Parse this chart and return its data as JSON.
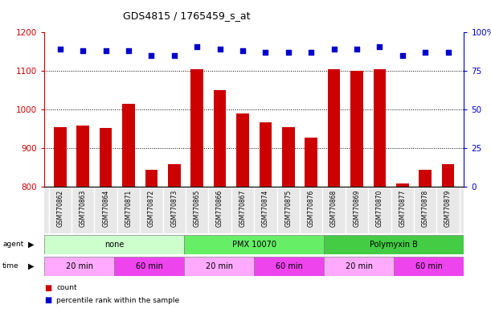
{
  "title": "GDS4815 / 1765459_s_at",
  "samples": [
    "GSM770862",
    "GSM770863",
    "GSM770864",
    "GSM770871",
    "GSM770872",
    "GSM770873",
    "GSM770865",
    "GSM770866",
    "GSM770867",
    "GSM770874",
    "GSM770875",
    "GSM770876",
    "GSM770868",
    "GSM770869",
    "GSM770870",
    "GSM770877",
    "GSM770878",
    "GSM770879"
  ],
  "counts": [
    955,
    960,
    952,
    1015,
    845,
    860,
    1105,
    1050,
    990,
    968,
    955,
    928,
    1105,
    1100,
    1105,
    808,
    845,
    858
  ],
  "percentiles": [
    89,
    88,
    88,
    88,
    85,
    85,
    91,
    89,
    88,
    87,
    87,
    87,
    89,
    89,
    91,
    85,
    87,
    87
  ],
  "bar_color": "#cc0000",
  "dot_color": "#0000cc",
  "ylim_left": [
    800,
    1200
  ],
  "ylim_right": [
    0,
    100
  ],
  "yticks_left": [
    800,
    900,
    1000,
    1100,
    1200
  ],
  "yticks_right": [
    0,
    25,
    50,
    75,
    100
  ],
  "agent_groups": [
    {
      "label": "none",
      "start": 0,
      "end": 6,
      "color": "#ccffcc"
    },
    {
      "label": "PMX 10070",
      "start": 6,
      "end": 12,
      "color": "#66ee66"
    },
    {
      "label": "Polymyxin B",
      "start": 12,
      "end": 18,
      "color": "#44cc44"
    }
  ],
  "time_groups": [
    {
      "label": "20 min",
      "start": 0,
      "end": 3,
      "color": "#ffaaff"
    },
    {
      "label": "60 min",
      "start": 3,
      "end": 6,
      "color": "#ee44ee"
    },
    {
      "label": "20 min",
      "start": 6,
      "end": 9,
      "color": "#ffaaff"
    },
    {
      "label": "60 min",
      "start": 9,
      "end": 12,
      "color": "#ee44ee"
    },
    {
      "label": "20 min",
      "start": 12,
      "end": 15,
      "color": "#ffaaff"
    },
    {
      "label": "60 min",
      "start": 15,
      "end": 18,
      "color": "#ee44ee"
    }
  ],
  "legend_items": [
    {
      "label": "count",
      "color": "#cc0000"
    },
    {
      "label": "percentile rank within the sample",
      "color": "#0000cc"
    }
  ],
  "bg_color": "#ffffff",
  "tick_color_left": "#cc0000",
  "tick_color_right": "#0000cc",
  "grid_yticks": [
    900,
    1000,
    1100
  ]
}
